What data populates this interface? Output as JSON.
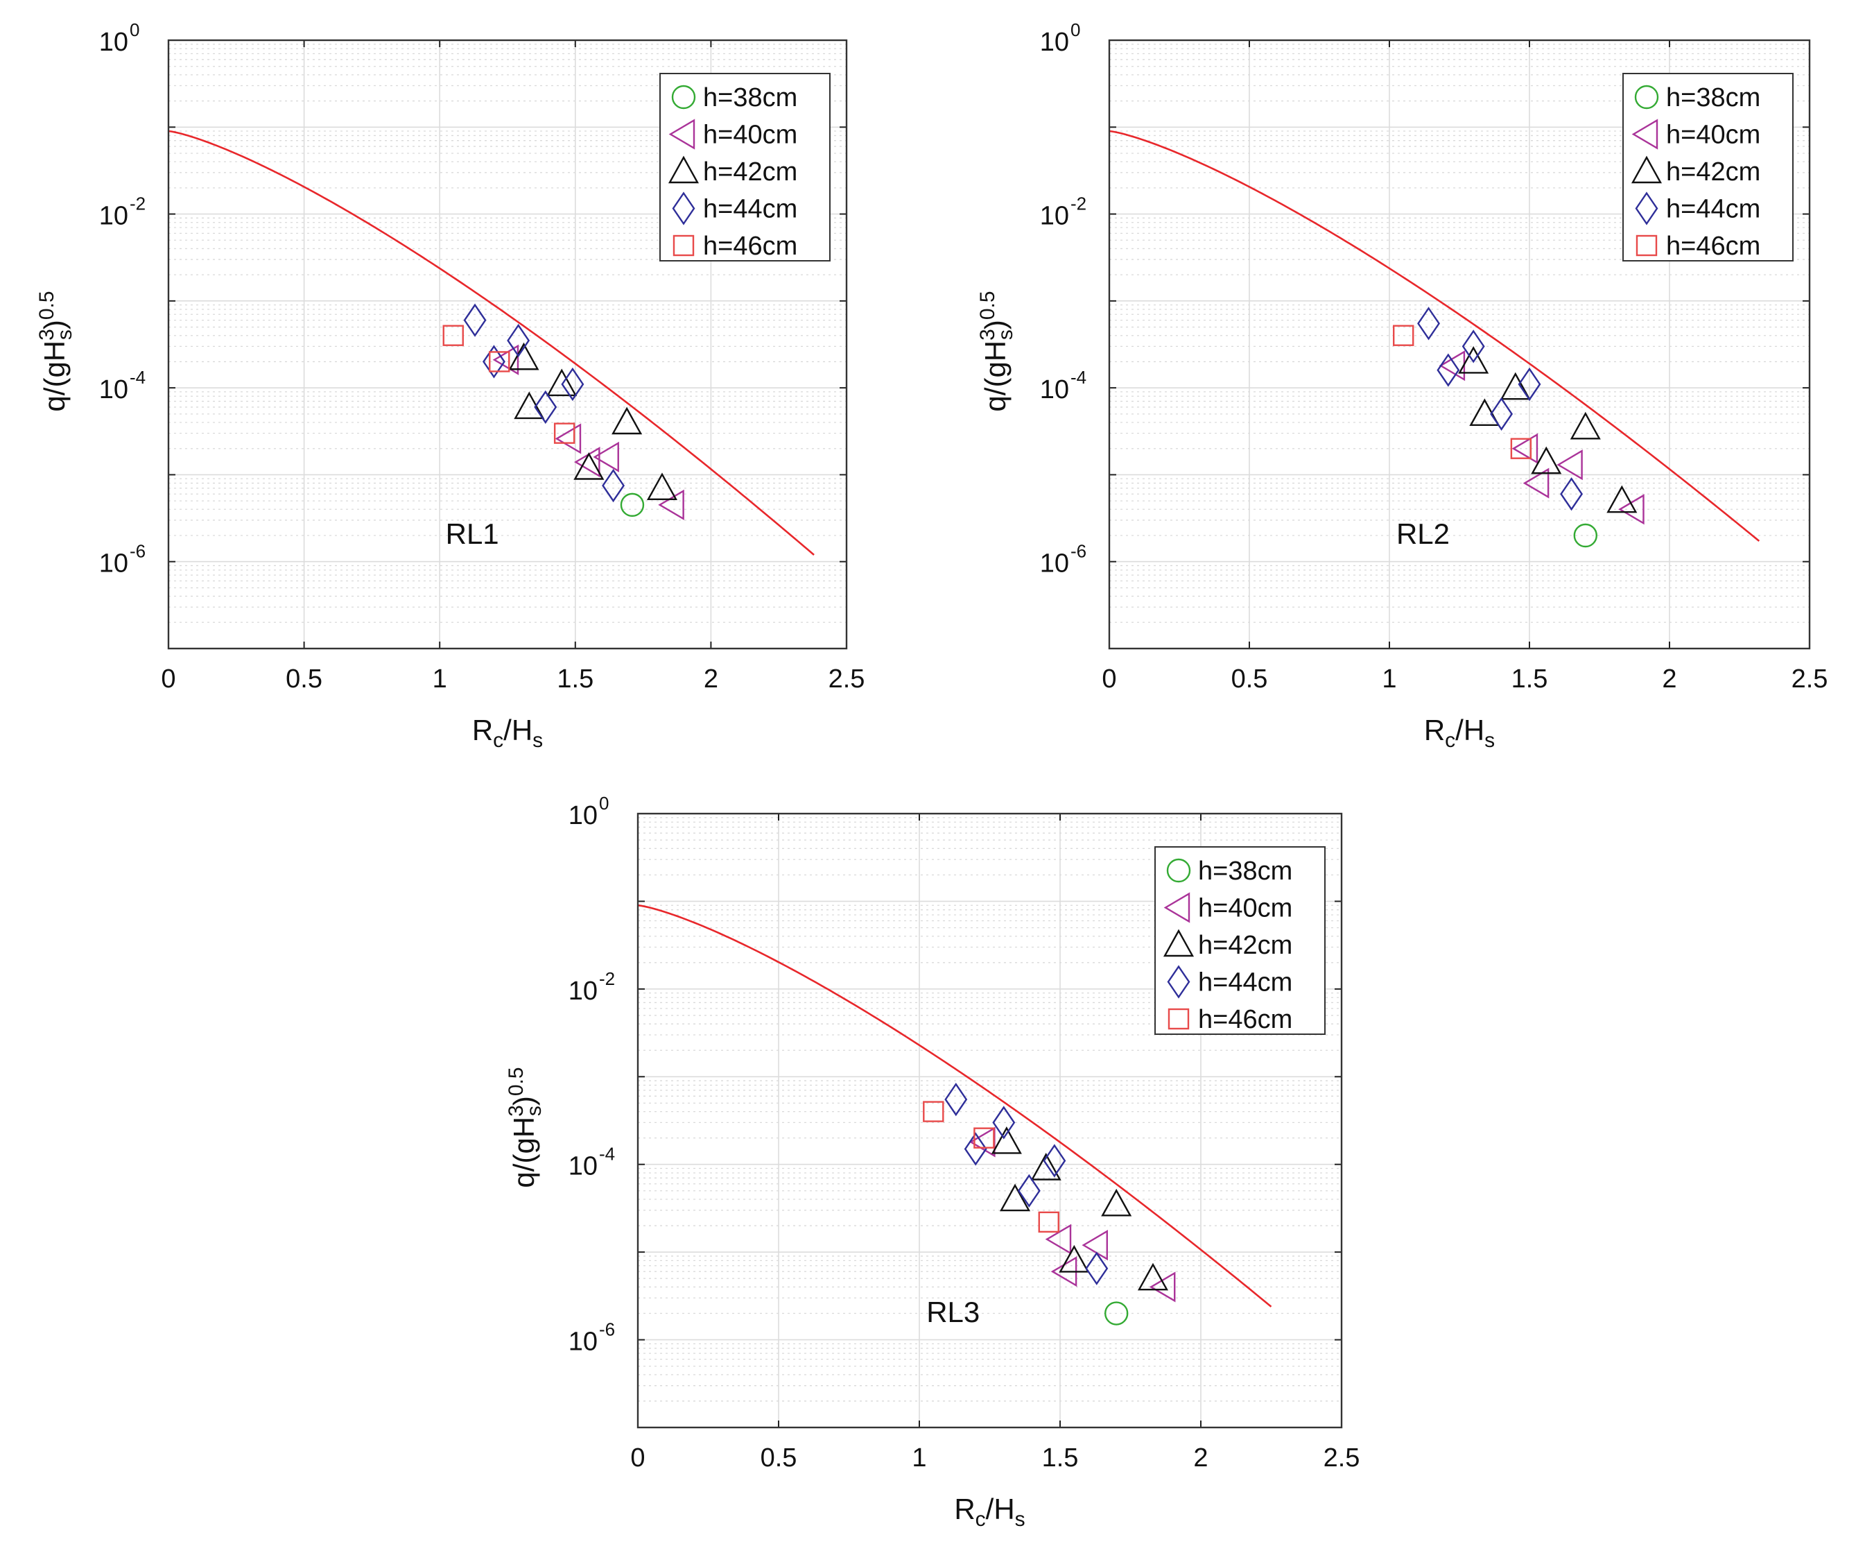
{
  "chart_data": [
    {
      "type": "scatter",
      "panel_label": "RL1",
      "xlabel": {
        "main": "R",
        "sub1": "c",
        "mid": "/H",
        "sub2": "s"
      },
      "ylabel": {
        "t1": "q/(gH",
        "sub": "s",
        "sup3": "3",
        "t2": ")",
        "sup": "0.5"
      },
      "xlim": [
        0,
        2.5
      ],
      "ylim": [
        1e-07,
        1
      ],
      "yscale": "log",
      "grid": true,
      "legend_position": "top-right",
      "x_ticks": [
        "0",
        "0.5",
        "1",
        "1.5",
        "2",
        "2.5"
      ],
      "y_ticks": [
        {
          "base": "10",
          "exp": "0"
        },
        {
          "base": "10",
          "exp": "-2"
        },
        {
          "base": "10",
          "exp": "-4"
        },
        {
          "base": "10",
          "exp": "-6"
        }
      ],
      "curve": {
        "a": 0.09,
        "b": 2.7,
        "c": 1.3,
        "x_end": 2.38
      },
      "series": [
        {
          "name": "h=38cm",
          "marker": "circle",
          "color": "#33aa33",
          "points": [
            [
              1.71,
              4.5e-06
            ]
          ]
        },
        {
          "name": "h=40cm",
          "marker": "triangle-left",
          "color": "#aa3399",
          "points": [
            [
              1.25,
              0.00021
            ],
            [
              1.48,
              2.6e-05
            ],
            [
              1.55,
              1.4e-05
            ],
            [
              1.62,
              1.6e-05
            ],
            [
              1.86,
              4.5e-06
            ]
          ]
        },
        {
          "name": "h=42cm",
          "marker": "triangle-up",
          "color": "#111111",
          "points": [
            [
              1.31,
              0.00022
            ],
            [
              1.33,
              6e-05
            ],
            [
              1.45,
              0.00011
            ],
            [
              1.55,
              1.2e-05
            ],
            [
              1.69,
              4e-05
            ],
            [
              1.82,
              7e-06
            ]
          ]
        },
        {
          "name": "h=44cm",
          "marker": "diamond",
          "color": "#2e2e99",
          "points": [
            [
              1.13,
              0.0006
            ],
            [
              1.2,
              0.0002
            ],
            [
              1.29,
              0.00035
            ],
            [
              1.39,
              6e-05
            ],
            [
              1.49,
              0.00011
            ],
            [
              1.64,
              7.5e-06
            ]
          ]
        },
        {
          "name": "h=46cm",
          "marker": "square",
          "color": "#e84a4a",
          "points": [
            [
              1.05,
              0.0004
            ],
            [
              1.22,
              0.0002
            ],
            [
              1.46,
              3e-05
            ]
          ]
        }
      ]
    },
    {
      "type": "scatter",
      "panel_label": "RL2",
      "xlabel": {
        "main": "R",
        "sub1": "c",
        "mid": "/H",
        "sub2": "s"
      },
      "ylabel": {
        "t1": "q/(gH",
        "sub": "s",
        "sup3": "3",
        "t2": ")",
        "sup": "0.5"
      },
      "xlim": [
        0,
        2.5
      ],
      "ylim": [
        1e-07,
        1
      ],
      "yscale": "log",
      "grid": true,
      "legend_position": "top-right",
      "x_ticks": [
        "0",
        "0.5",
        "1",
        "1.5",
        "2",
        "2.5"
      ],
      "y_ticks": [
        {
          "base": "10",
          "exp": "0"
        },
        {
          "base": "10",
          "exp": "-2"
        },
        {
          "base": "10",
          "exp": "-4"
        },
        {
          "base": "10",
          "exp": "-6"
        }
      ],
      "curve": {
        "a": 0.09,
        "b": 2.7,
        "c": 1.3,
        "x_end": 2.32
      },
      "series": [
        {
          "name": "h=38cm",
          "marker": "circle",
          "color": "#33aa33",
          "points": [
            [
              1.7,
              2e-06
            ]
          ]
        },
        {
          "name": "h=40cm",
          "marker": "triangle-left",
          "color": "#aa3399",
          "points": [
            [
              1.23,
              0.00018
            ],
            [
              1.49,
              2e-05
            ],
            [
              1.53,
              8e-06
            ],
            [
              1.65,
              1.3e-05
            ],
            [
              1.87,
              4e-06
            ]
          ]
        },
        {
          "name": "h=42cm",
          "marker": "triangle-up",
          "color": "#111111",
          "points": [
            [
              1.3,
              0.0002
            ],
            [
              1.34,
              5e-05
            ],
            [
              1.45,
              0.0001
            ],
            [
              1.56,
              1.4e-05
            ],
            [
              1.7,
              3.5e-05
            ],
            [
              1.83,
              5e-06
            ]
          ]
        },
        {
          "name": "h=44cm",
          "marker": "diamond",
          "color": "#2e2e99",
          "points": [
            [
              1.14,
              0.00055
            ],
            [
              1.21,
              0.00016
            ],
            [
              1.3,
              0.0003
            ],
            [
              1.4,
              5e-05
            ],
            [
              1.5,
              0.00011
            ],
            [
              1.65,
              6e-06
            ]
          ]
        },
        {
          "name": "h=46cm",
          "marker": "square",
          "color": "#e84a4a",
          "points": [
            [
              1.05,
              0.0004
            ],
            [
              1.47,
              2e-05
            ]
          ]
        }
      ]
    },
    {
      "type": "scatter",
      "panel_label": "RL3",
      "xlabel": {
        "main": "R",
        "sub1": "c",
        "mid": "/H",
        "sub2": "s"
      },
      "ylabel": {
        "t1": "q/(gH",
        "sub": "s",
        "sup3": "3",
        "t2": ")",
        "sup": "0.5"
      },
      "xlim": [
        0,
        2.5
      ],
      "ylim": [
        1e-07,
        1
      ],
      "yscale": "log",
      "grid": true,
      "legend_position": "top-right",
      "x_ticks": [
        "0",
        "0.5",
        "1",
        "1.5",
        "2",
        "2.5"
      ],
      "y_ticks": [
        {
          "base": "10",
          "exp": "0"
        },
        {
          "base": "10",
          "exp": "-2"
        },
        {
          "base": "10",
          "exp": "-4"
        },
        {
          "base": "10",
          "exp": "-6"
        }
      ],
      "curve": {
        "a": 0.09,
        "b": 2.72,
        "c": 1.3,
        "x_end": 2.25
      },
      "series": [
        {
          "name": "h=38cm",
          "marker": "circle",
          "color": "#33aa33",
          "points": [
            [
              1.7,
              2e-06
            ]
          ]
        },
        {
          "name": "h=40cm",
          "marker": "triangle-left",
          "color": "#aa3399",
          "points": [
            [
              1.23,
              0.00018
            ],
            [
              1.5,
              1.4e-05
            ],
            [
              1.52,
              6e-06
            ],
            [
              1.63,
              1.2e-05
            ],
            [
              1.87,
              4e-06
            ]
          ]
        },
        {
          "name": "h=42cm",
          "marker": "triangle-up",
          "color": "#111111",
          "points": [
            [
              1.31,
              0.00018
            ],
            [
              1.34,
              4e-05
            ],
            [
              1.45,
              9e-05
            ],
            [
              1.55,
              8e-06
            ],
            [
              1.7,
              3.5e-05
            ],
            [
              1.83,
              5e-06
            ]
          ]
        },
        {
          "name": "h=44cm",
          "marker": "diamond",
          "color": "#2e2e99",
          "points": [
            [
              1.13,
              0.00055
            ],
            [
              1.2,
              0.00015
            ],
            [
              1.3,
              0.0003
            ],
            [
              1.39,
              5e-05
            ],
            [
              1.48,
              0.00011
            ],
            [
              1.63,
              6.5e-06
            ]
          ]
        },
        {
          "name": "h=46cm",
          "marker": "square",
          "color": "#e84a4a",
          "points": [
            [
              1.05,
              0.0004
            ],
            [
              1.23,
              0.0002
            ],
            [
              1.46,
              2.2e-05
            ]
          ]
        }
      ]
    }
  ]
}
